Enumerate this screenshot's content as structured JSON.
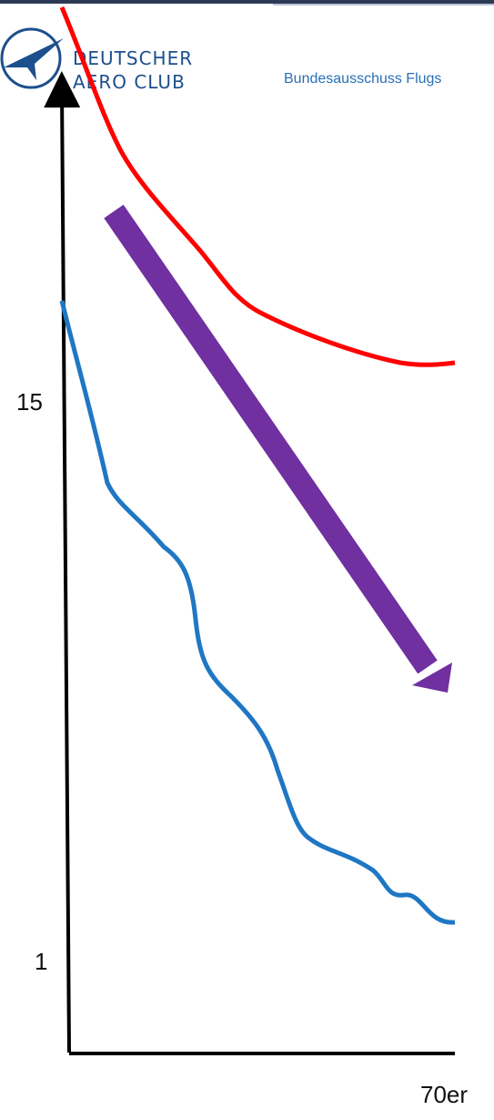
{
  "header": {
    "logo_line1": "DEUTSCHER",
    "logo_line2": "AERO CLUB",
    "subtitle": "Bundesausschuss Flugs",
    "brand_color": "#1d4f8c",
    "subtitle_color": "#2b6fb6"
  },
  "chart_data": {
    "type": "line",
    "title": "",
    "xlabel": "",
    "ylabel": "",
    "x_tick_labels": [
      "70er"
    ],
    "y_tick_labels": [
      "15",
      "1"
    ],
    "grid": false,
    "legend": "none",
    "series": [
      {
        "color": "#ff0000",
        "trend": "decreasing",
        "shape": "steep decline flattening out"
      },
      {
        "color": "#1f77c4",
        "trend": "decreasing",
        "shape": "wavy steady decline"
      }
    ],
    "annotations": [
      {
        "type": "arrow",
        "direction": "down-right",
        "color": "#7030a0"
      }
    ],
    "colors": {
      "axis": "#000000",
      "red_series": "#ff0000",
      "blue_series": "#1f77c4",
      "arrow": "#7030a0"
    }
  }
}
